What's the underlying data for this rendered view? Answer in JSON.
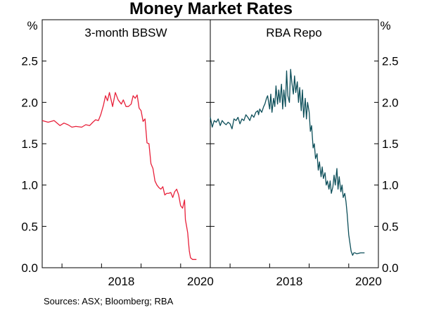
{
  "chart_data": {
    "type": "line",
    "title": "Money Market Rates",
    "y_unit_left": "%",
    "y_unit_right": "%",
    "ylim": [
      0,
      3
    ],
    "yticks": [
      "0.0",
      "0.5",
      "1.0",
      "1.5",
      "2.0",
      "2.5"
    ],
    "ytick_values": [
      0,
      0.5,
      1.0,
      1.5,
      2.0,
      2.5
    ],
    "source": "Sources:   ASX; Bloomberg; RBA",
    "panels": [
      {
        "title": "3-month BBSW",
        "color": "#e8203a",
        "xlim": [
          2016.5,
          2020.75
        ],
        "xticks": [
          "2018",
          "2020"
        ],
        "xtick_values": [
          2018,
          2020
        ],
        "x": [
          2016.5,
          2016.65,
          2016.8,
          2016.95,
          2017.05,
          2017.15,
          2017.25,
          2017.35,
          2017.5,
          2017.6,
          2017.7,
          2017.78,
          2017.85,
          2017.92,
          2017.98,
          2018.05,
          2018.1,
          2018.15,
          2018.2,
          2018.28,
          2018.35,
          2018.42,
          2018.5,
          2018.55,
          2018.62,
          2018.68,
          2018.75,
          2018.8,
          2018.85,
          2018.9,
          2018.95,
          2019.0,
          2019.05,
          2019.1,
          2019.15,
          2019.2,
          2019.25,
          2019.3,
          2019.35,
          2019.4,
          2019.45,
          2019.5,
          2019.55,
          2019.6,
          2019.65,
          2019.7,
          2019.75,
          2019.8,
          2019.85,
          2019.9,
          2019.95,
          2020.0,
          2020.05,
          2020.1,
          2020.12,
          2020.15,
          2020.18,
          2020.2,
          2020.22,
          2020.25,
          2020.3,
          2020.4
        ],
        "values": [
          1.78,
          1.76,
          1.78,
          1.72,
          1.75,
          1.73,
          1.7,
          1.71,
          1.7,
          1.73,
          1.72,
          1.76,
          1.79,
          1.78,
          1.85,
          1.97,
          2.08,
          2.02,
          2.12,
          1.95,
          2.12,
          2.03,
          1.98,
          2.03,
          1.95,
          1.95,
          1.98,
          2.08,
          2.05,
          2.09,
          1.93,
          1.9,
          1.77,
          1.8,
          1.51,
          1.5,
          1.26,
          1.2,
          1.05,
          1.0,
          0.97,
          0.95,
          0.98,
          0.88,
          0.9,
          0.9,
          0.91,
          0.85,
          0.92,
          0.95,
          0.88,
          0.75,
          0.72,
          0.82,
          0.58,
          0.5,
          0.42,
          0.3,
          0.2,
          0.12,
          0.1,
          0.1
        ]
      },
      {
        "title": "RBA Repo",
        "color": "#0d4f5a",
        "xlim": [
          2016.5,
          2020.75
        ],
        "xticks": [
          "2018",
          "2020"
        ],
        "xtick_values": [
          2018,
          2020
        ],
        "x": [
          2016.5,
          2016.55,
          2016.6,
          2016.65,
          2016.7,
          2016.75,
          2016.8,
          2016.85,
          2016.9,
          2016.95,
          2017.0,
          2017.05,
          2017.1,
          2017.15,
          2017.2,
          2017.25,
          2017.3,
          2017.35,
          2017.4,
          2017.45,
          2017.5,
          2017.55,
          2017.6,
          2017.65,
          2017.7,
          2017.72,
          2017.75,
          2017.8,
          2017.85,
          2017.88,
          2017.92,
          2017.95,
          2018.0,
          2018.03,
          2018.06,
          2018.1,
          2018.13,
          2018.16,
          2018.2,
          2018.23,
          2018.26,
          2018.3,
          2018.33,
          2018.36,
          2018.4,
          2018.43,
          2018.46,
          2018.5,
          2018.53,
          2018.56,
          2018.6,
          2018.63,
          2018.66,
          2018.7,
          2018.73,
          2018.76,
          2018.8,
          2018.83,
          2018.86,
          2018.9,
          2018.93,
          2018.96,
          2019.0,
          2019.03,
          2019.06,
          2019.1,
          2019.13,
          2019.16,
          2019.2,
          2019.23,
          2019.26,
          2019.3,
          2019.33,
          2019.36,
          2019.4,
          2019.43,
          2019.46,
          2019.5,
          2019.53,
          2019.56,
          2019.6,
          2019.63,
          2019.66,
          2019.7,
          2019.73,
          2019.76,
          2019.8,
          2019.83,
          2019.86,
          2019.9,
          2019.93,
          2019.96,
          2020.0,
          2020.03,
          2020.06,
          2020.1,
          2020.13,
          2020.16,
          2020.2,
          2020.3,
          2020.4
        ],
        "values": [
          1.82,
          1.7,
          1.78,
          1.76,
          1.8,
          1.72,
          1.78,
          1.75,
          1.73,
          1.76,
          1.74,
          1.68,
          1.8,
          1.78,
          1.82,
          1.74,
          1.8,
          1.78,
          1.85,
          1.82,
          1.78,
          1.85,
          1.82,
          1.88,
          1.9,
          1.85,
          1.92,
          1.88,
          1.95,
          1.98,
          2.05,
          2.08,
          1.92,
          2.1,
          1.88,
          2.05,
          1.95,
          2.2,
          1.98,
          2.15,
          2.0,
          2.22,
          1.92,
          2.15,
          1.95,
          2.38,
          2.08,
          2.0,
          2.4,
          2.25,
          2.1,
          2.32,
          2.12,
          2.25,
          2.0,
          2.18,
          1.9,
          2.15,
          1.82,
          2.05,
          1.8,
          2.0,
          1.88,
          1.65,
          1.72,
          1.45,
          1.5,
          1.32,
          1.38,
          1.18,
          1.28,
          1.1,
          1.22,
          1.08,
          1.15,
          1.0,
          1.05,
          0.95,
          1.05,
          0.9,
          0.98,
          1.12,
          1.0,
          1.2,
          0.95,
          1.1,
          0.92,
          1.0,
          0.85,
          0.9,
          0.8,
          0.65,
          0.4,
          0.3,
          0.2,
          0.15,
          0.18,
          0.18,
          0.17,
          0.18,
          0.18
        ]
      }
    ]
  }
}
